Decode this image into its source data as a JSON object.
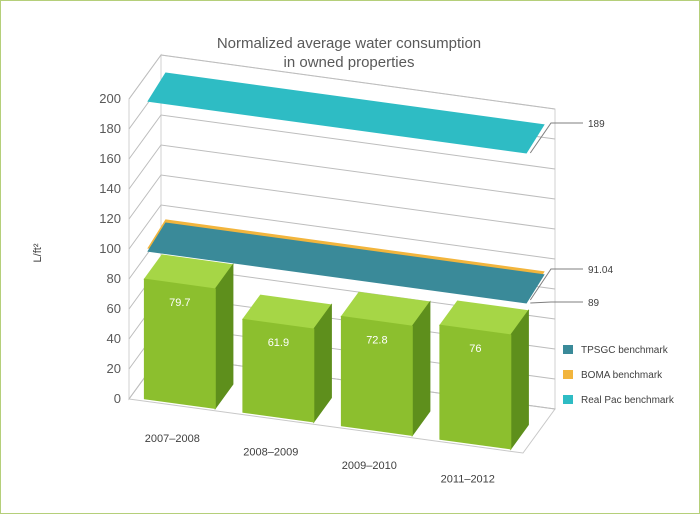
{
  "chart_data": {
    "type": "bar",
    "title": [
      "Normalized average water consumption",
      "in owned properties"
    ],
    "ylabel": "L/ft²",
    "ylim": [
      0,
      200
    ],
    "yticks": [
      0,
      20,
      40,
      60,
      80,
      100,
      120,
      140,
      160,
      180,
      200
    ],
    "categories": [
      "2007–2008",
      "2008–2009",
      "2009–2010",
      "2011–2012"
    ],
    "values": [
      79.7,
      61.9,
      72.8,
      76
    ],
    "value_labels": [
      "79.7",
      "61.9",
      "72.8",
      "76"
    ],
    "bar_color": "#8cbf2e",
    "grid": true,
    "projection": "3d",
    "benchmarks": [
      {
        "name": "TPSGC benchmark",
        "value": 89,
        "label": "89",
        "color": "#3a8a99"
      },
      {
        "name": "BOMA benchmark",
        "value": 91.04,
        "label": "91.04",
        "color": "#f2b53d"
      },
      {
        "name": "Real Pac benchmark",
        "value": 189,
        "label": "189",
        "color": "#2ebcc4"
      }
    ],
    "legend_position": "right"
  }
}
